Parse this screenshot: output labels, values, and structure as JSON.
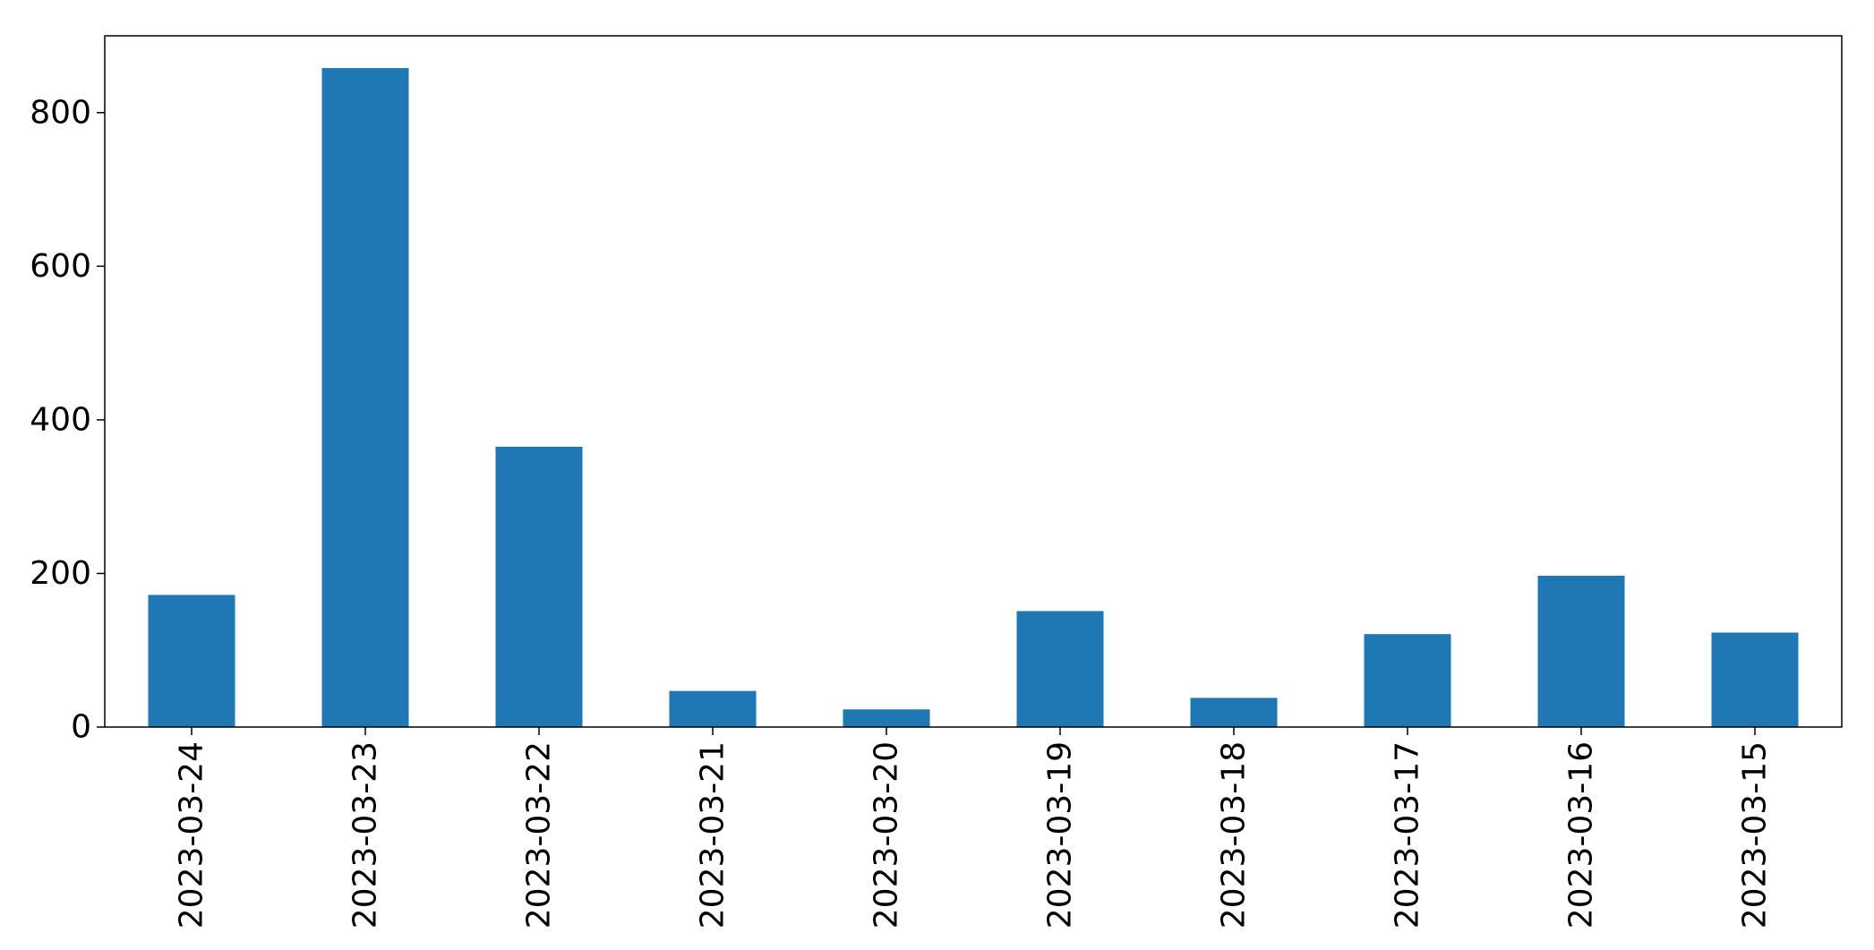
{
  "chart_data": {
    "type": "bar",
    "categories": [
      "2023-03-24",
      "2023-03-23",
      "2023-03-22",
      "2023-03-21",
      "2023-03-20",
      "2023-03-19",
      "2023-03-18",
      "2023-03-17",
      "2023-03-16",
      "2023-03-15"
    ],
    "values": [
      172,
      858,
      365,
      47,
      23,
      151,
      38,
      121,
      197,
      123
    ],
    "title": "",
    "xlabel": "",
    "ylabel": "",
    "ylim": [
      0,
      900
    ],
    "yticks": [
      0,
      200,
      400,
      600,
      800
    ],
    "grid": false,
    "legend": "none",
    "bar_color": "#1f77b4"
  }
}
